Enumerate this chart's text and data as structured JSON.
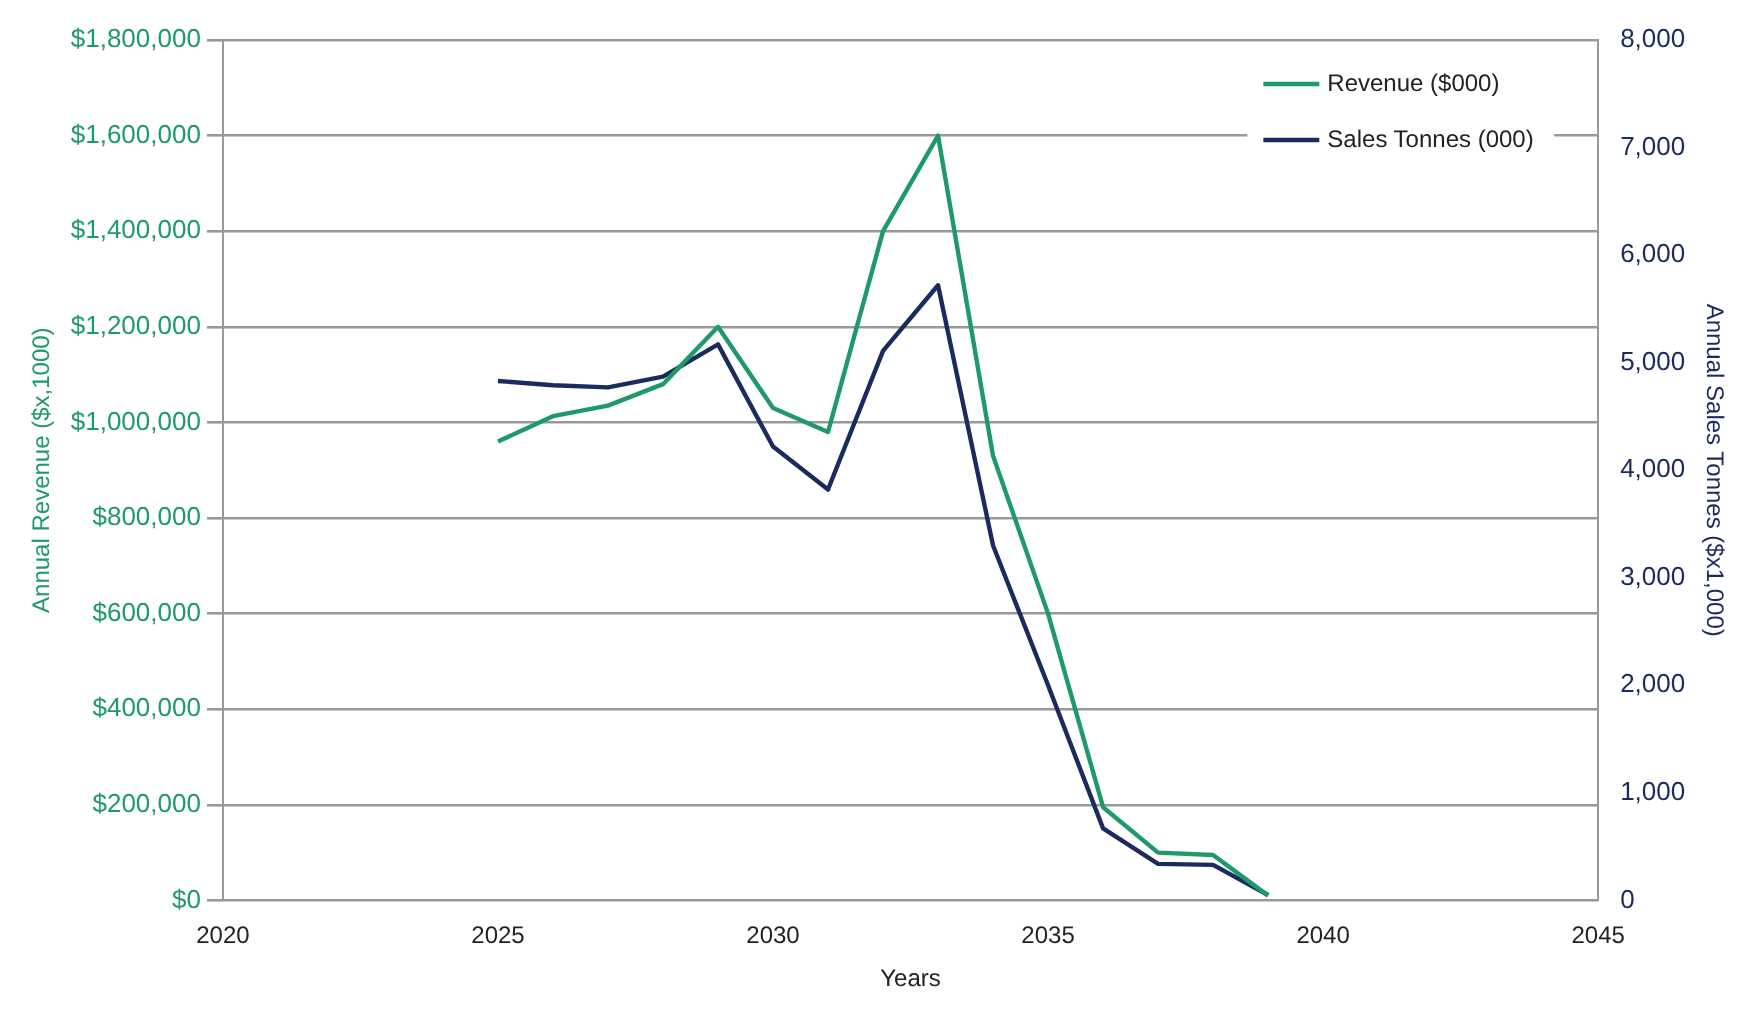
{
  "chart_data": {
    "type": "line",
    "xlabel": "Years",
    "ylabel": "Annual Revenue ($x,1000)",
    "y2label": "Annual Sales Tonnes ($x1,000)",
    "x": [
      2025,
      2026,
      2027,
      2028,
      2029,
      2030,
      2031,
      2032,
      2033,
      2034,
      2035,
      2036,
      2037,
      2038,
      2039
    ],
    "series": [
      {
        "name": "Revenue ($000)",
        "color": "#1e9a6a",
        "values": [
          960000,
          1013000,
          1035000,
          1080000,
          1200000,
          1030000,
          980000,
          1400000,
          1600000,
          930000,
          600000,
          195000,
          100000,
          95000,
          10000
        ]
      },
      {
        "name": "Sales Tonnes (000)",
        "color": "#1c2b5e",
        "axis": "y2",
        "values": [
          4830,
          4790,
          4770,
          4870,
          5170,
          4220,
          3820,
          5110,
          5720,
          3300,
          2000,
          670,
          340,
          330,
          50
        ]
      }
    ],
    "xlim": [
      2020,
      2045
    ],
    "xticks": [
      2020,
      2025,
      2030,
      2035,
      2040,
      2045
    ],
    "ylim": [
      0,
      1800000
    ],
    "yticks": [
      {
        "value": 0,
        "label": "$0"
      },
      {
        "value": 200000,
        "label": "$200,000"
      },
      {
        "value": 400000,
        "label": "$400,000"
      },
      {
        "value": 600000,
        "label": "$600,000"
      },
      {
        "value": 800000,
        "label": "$800,000"
      },
      {
        "value": 1000000,
        "label": "$1,000,000"
      },
      {
        "value": 1200000,
        "label": "$1,200,000"
      },
      {
        "value": 1400000,
        "label": "$1,400,000"
      },
      {
        "value": 1600000,
        "label": "$1,600,000"
      },
      {
        "value": 1800000,
        "label": "$1,800,000"
      }
    ],
    "y2lim": [
      0,
      8000
    ],
    "y2ticks": [
      {
        "value": 0,
        "label": "0"
      },
      {
        "value": 1000,
        "label": "1,000"
      },
      {
        "value": 2000,
        "label": "2,000"
      },
      {
        "value": 3000,
        "label": "3,000"
      },
      {
        "value": 4000,
        "label": "4,000"
      },
      {
        "value": 5000,
        "label": "5,000"
      },
      {
        "value": 6000,
        "label": "6,000"
      },
      {
        "value": 7000,
        "label": "7,000"
      },
      {
        "value": 8000,
        "label": "8,000"
      }
    ],
    "grid": "y",
    "legend": "top right",
    "marker": "none",
    "line_style": "solid"
  }
}
